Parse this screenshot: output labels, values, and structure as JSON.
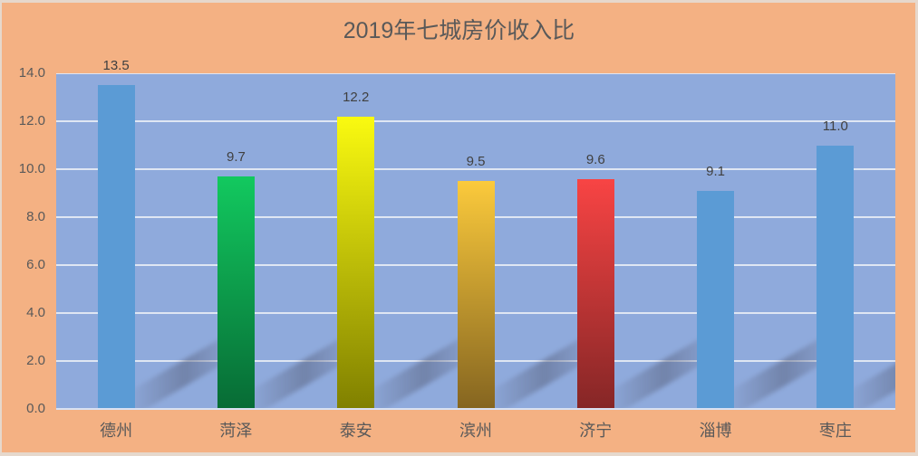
{
  "chart_data": {
    "type": "bar",
    "title": "2019年七城房价收入比",
    "xlabel": "",
    "ylabel": "",
    "categories": [
      "德州",
      "菏泽",
      "泰安",
      "滨州",
      "济宁",
      "淄博",
      "枣庄"
    ],
    "values": [
      13.5,
      9.7,
      12.2,
      9.5,
      9.6,
      9.1,
      11.0
    ],
    "data_labels": [
      "13.5",
      "9.7",
      "12.2",
      "9.5",
      "9.6",
      "9.1",
      "11.0"
    ],
    "ylim": [
      0,
      14
    ],
    "yticks": [
      "0.0",
      "2.0",
      "4.0",
      "6.0",
      "8.0",
      "10.0",
      "12.0",
      "14.0"
    ],
    "grid": true,
    "legend": "none",
    "bar_colors": [
      {
        "top": "#5b9bd5",
        "bottom": "#5b9bd5"
      },
      {
        "top": "#12c95f",
        "bottom": "#076b35"
      },
      {
        "top": "#fafa10",
        "bottom": "#808000"
      },
      {
        "top": "#fbca3c",
        "bottom": "#856520"
      },
      {
        "top": "#f84444",
        "bottom": "#852626"
      },
      {
        "top": "#5b9bd5",
        "bottom": "#5b9bd5"
      },
      {
        "top": "#5b9bd5",
        "bottom": "#5b9bd5"
      }
    ],
    "plot_background": "#8faadc",
    "chart_background": "#f4b183"
  }
}
